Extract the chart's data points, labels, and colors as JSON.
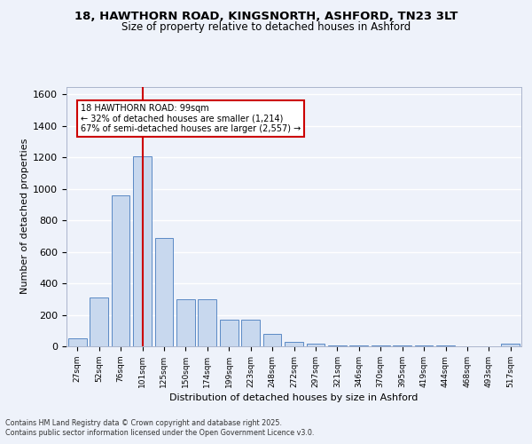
{
  "title_line1": "18, HAWTHORN ROAD, KINGSNORTH, ASHFORD, TN23 3LT",
  "title_line2": "Size of property relative to detached houses in Ashford",
  "xlabel": "Distribution of detached houses by size in Ashford",
  "ylabel": "Number of detached properties",
  "categories": [
    "27sqm",
    "52sqm",
    "76sqm",
    "101sqm",
    "125sqm",
    "150sqm",
    "174sqm",
    "199sqm",
    "223sqm",
    "248sqm",
    "272sqm",
    "297sqm",
    "321sqm",
    "346sqm",
    "370sqm",
    "395sqm",
    "419sqm",
    "444sqm",
    "468sqm",
    "493sqm",
    "517sqm"
  ],
  "values": [
    50,
    310,
    960,
    1210,
    690,
    300,
    300,
    170,
    170,
    80,
    30,
    15,
    8,
    4,
    8,
    3,
    3,
    3,
    2,
    2,
    15
  ],
  "bar_color": "#c8d8ee",
  "bar_edge_color": "#5b8ac5",
  "vline_x_index": 3,
  "vline_color": "#cc0000",
  "annotation_text": "18 HAWTHORN ROAD: 99sqm\n← 32% of detached houses are smaller (1,214)\n67% of semi-detached houses are larger (2,557) →",
  "annotation_box_color": "#cc0000",
  "annotation_text_color": "#000000",
  "background_color": "#eef2fa",
  "plot_bg_color": "#eef2fa",
  "grid_color": "#ffffff",
  "ylim": [
    0,
    1650
  ],
  "yticks": [
    0,
    200,
    400,
    600,
    800,
    1000,
    1200,
    1400,
    1600
  ],
  "footer_line1": "Contains HM Land Registry data © Crown copyright and database right 2025.",
  "footer_line2": "Contains public sector information licensed under the Open Government Licence v3.0."
}
